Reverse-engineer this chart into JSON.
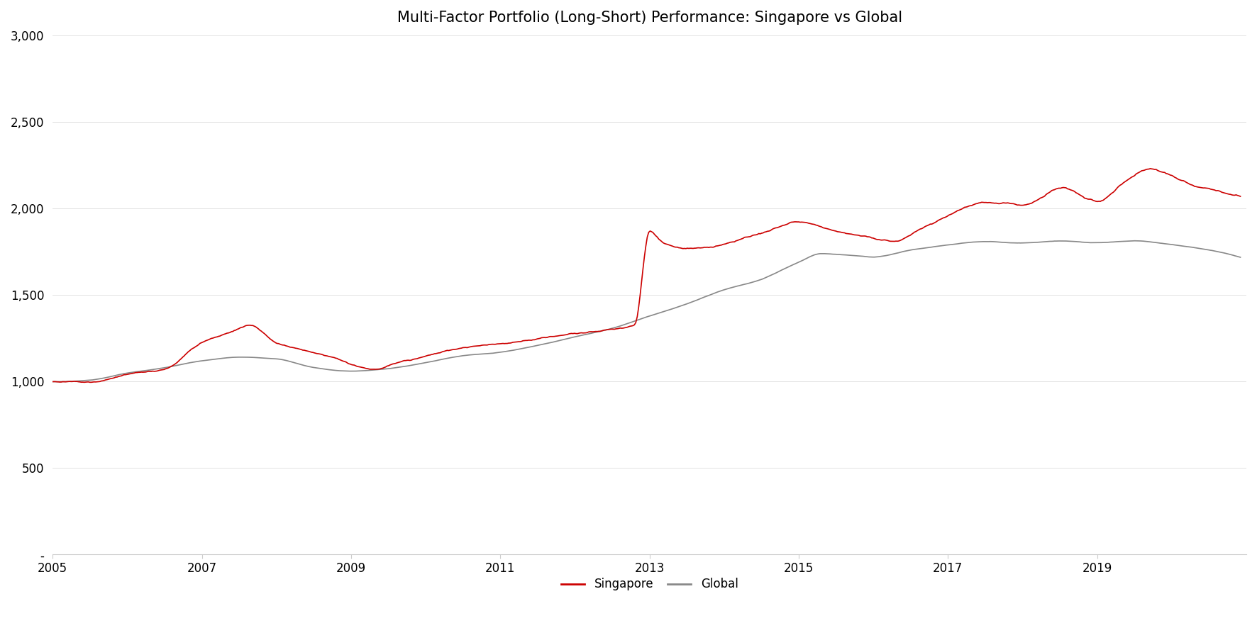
{
  "title": "Multi-Factor Portfolio (Long-Short) Performance: Singapore vs Global",
  "singapore_color": "#CC0000",
  "global_color": "#888888",
  "line_width": 1.2,
  "ylim": [
    0,
    3000
  ],
  "yticks": [
    0,
    500,
    1000,
    1500,
    2000,
    2500,
    3000
  ],
  "ytick_labels": [
    "-",
    "500",
    "1,000",
    "1,500",
    "2,000",
    "2,500",
    "3,000"
  ],
  "xtick_years": [
    2005,
    2007,
    2009,
    2011,
    2013,
    2015,
    2017,
    2019
  ],
  "legend_labels": [
    "Singapore",
    "Global"
  ],
  "figsize": [
    17.72,
    8.86
  ],
  "dpi": 100,
  "background_color": "#ffffff",
  "title_fontsize": 15,
  "tick_fontsize": 12,
  "legend_fontsize": 12,
  "sg_waypoints_x": [
    2005.0,
    2005.5,
    2006.0,
    2006.5,
    2007.0,
    2007.3,
    2007.65,
    2008.0,
    2008.4,
    2008.8,
    2009.0,
    2009.3,
    2009.6,
    2010.0,
    2010.5,
    2011.0,
    2011.5,
    2012.0,
    2012.5,
    2012.8,
    2013.0,
    2013.2,
    2013.5,
    2013.8,
    2014.0,
    2014.5,
    2015.0,
    2015.5,
    2016.0,
    2016.3,
    2016.7,
    2017.0,
    2017.5,
    2018.0,
    2018.5,
    2019.0,
    2019.3,
    2019.7,
    2020.0,
    2020.3,
    2020.6,
    2020.9
  ],
  "sg_waypoints_y": [
    1000,
    1010,
    1060,
    1090,
    1250,
    1300,
    1360,
    1260,
    1220,
    1170,
    1130,
    1110,
    1150,
    1200,
    1250,
    1270,
    1300,
    1330,
    1360,
    1390,
    1950,
    1880,
    1860,
    1870,
    1900,
    1980,
    2060,
    2020,
    1980,
    1960,
    2060,
    2120,
    2200,
    2180,
    2280,
    2200,
    2300,
    2400,
    2360,
    2310,
    2280,
    2250
  ],
  "gl_waypoints_x": [
    2005.0,
    2005.5,
    2006.0,
    2006.5,
    2007.0,
    2007.5,
    2008.0,
    2008.5,
    2009.0,
    2009.5,
    2010.0,
    2010.5,
    2011.0,
    2011.5,
    2012.0,
    2012.5,
    2013.0,
    2013.5,
    2014.0,
    2014.5,
    2015.0,
    2015.3,
    2015.7,
    2016.0,
    2016.5,
    2017.0,
    2017.5,
    2018.0,
    2018.5,
    2019.0,
    2019.5,
    2020.0,
    2020.5,
    2020.9
  ],
  "gl_waypoints_y": [
    1000,
    1010,
    1050,
    1080,
    1120,
    1140,
    1130,
    1080,
    1060,
    1075,
    1110,
    1150,
    1170,
    1210,
    1260,
    1310,
    1380,
    1450,
    1530,
    1590,
    1690,
    1740,
    1730,
    1720,
    1760,
    1790,
    1810,
    1800,
    1810,
    1800,
    1810,
    1790,
    1760,
    1720
  ]
}
